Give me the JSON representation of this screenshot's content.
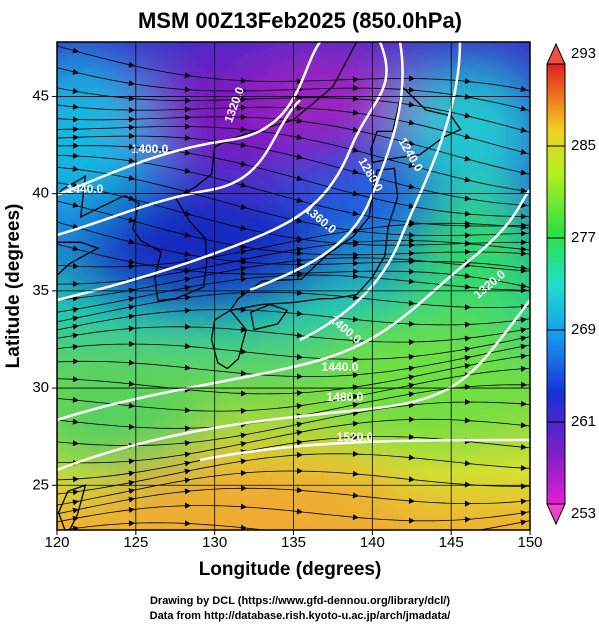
{
  "chart_data": {
    "type": "map",
    "title": "MSM 00Z13Feb2025 (850.0hPa)",
    "xlabel": "Longitude (degrees)",
    "ylabel": "Latitude  (degrees)",
    "xlim": [
      120,
      150
    ],
    "xticks": [
      120,
      125,
      130,
      135,
      140,
      145,
      150
    ],
    "ylim": [
      22.7,
      47.8
    ],
    "yticks": [
      25,
      30,
      35,
      40,
      45
    ],
    "colorbar": {
      "lim": [
        253,
        293
      ],
      "ticks": [
        253,
        261,
        269,
        277,
        285,
        293
      ]
    },
    "contour_labels": [
      "1400.0",
      "1440.0",
      "1320.0",
      "1360.0",
      "1280.0",
      "1240.0",
      "1400.0",
      "1440.0",
      "1480.0",
      "1520.0",
      "1320.0"
    ]
  },
  "credits": [
    "Drawing by DCL (https://www.gfd-dennou.org/library/dcl/)",
    "Data from http://database.rish.kyoto-u.ac.jp/arch/jmadata/"
  ]
}
